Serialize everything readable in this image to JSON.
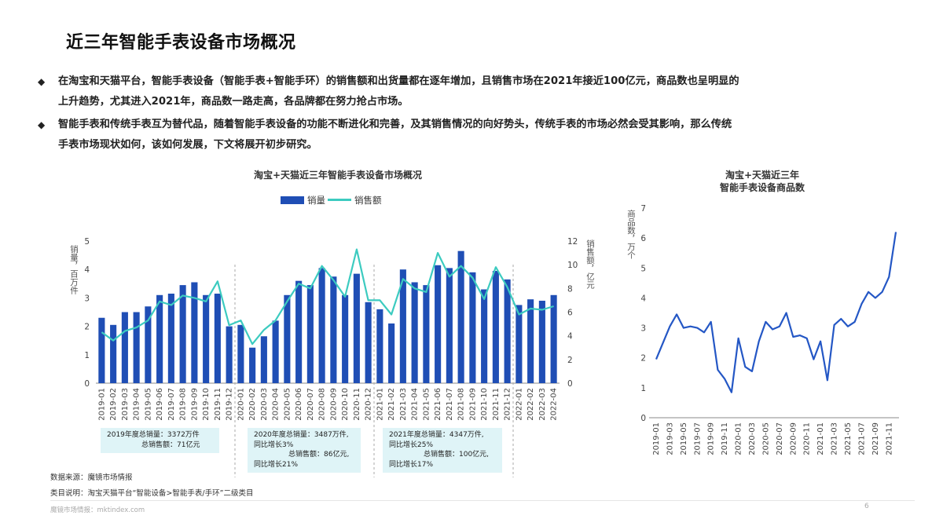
{
  "page": {
    "title": "近三年智能手表设备市场概况",
    "bullets": [
      {
        "marker": "◆",
        "lines": [
          "在淘宝和天猫平台，智能手表设备（智能手表+智能手环）的销售额和出货量都在逐年增加，且销售市场在2021年接近100亿元，商品数也呈明显的",
          "上升趋势，尤其进入2021年，商品数一路走高，各品牌都在努力抢占市场。"
        ]
      },
      {
        "marker": "◆",
        "lines": [
          "智能手表和传统手表互为替代品，随着智能手表设备的功能不断进化和完善，及其销售情况的向好势头，传统手表的市场必然会受其影响，那么传统",
          "手表市场现状如何，该如何发展，下文将展开初步研究。"
        ]
      }
    ],
    "summaries": [
      {
        "id": "2019",
        "lines": [
          "2019年度总销量：3372万件",
          "总销售额：71亿元"
        ]
      },
      {
        "id": "2020",
        "lines": [
          "2020年度总销量：3487万件,",
          "同比增长3%",
          "总销售额：86亿元,",
          "同比增长21%"
        ]
      },
      {
        "id": "2021",
        "lines": [
          "2021年度总销量：4347万件,",
          "同比增长25%",
          "总销售额：100亿元,",
          "同比增长17%"
        ]
      }
    ],
    "source_note": "数据来源：魔镜市场情报",
    "category_note": "类目说明：淘宝天猫平台“智能设备>智能手表/手环”二级类目",
    "footer": "魔镜市场情报：mktindex.com",
    "page_number": "6"
  },
  "colors": {
    "bars": "#1f4eb5",
    "sales_line": "#3ccbc0",
    "items_line": "#2457c5",
    "summary_bg": "#dff4f7",
    "divider": "#aaaaaa"
  },
  "chart_data": [
    {
      "type": "bar",
      "title": "淘宝+天猫近三年智能手表设备市场概况",
      "legend": [
        "销量",
        "销售额"
      ],
      "legend_position": "top",
      "ylabel_left": "销量，百万件",
      "ylabel_right": "销售额，亿元",
      "ylim_left": [
        0,
        5
      ],
      "ylim_right": [
        0,
        12
      ],
      "yticks_left": [
        "0",
        "1",
        "2",
        "3",
        "4",
        "5"
      ],
      "yticks_right": [
        "0",
        "2",
        "4",
        "6",
        "8",
        "10",
        "12"
      ],
      "categories": [
        "2019-01",
        "2019-02",
        "2019-03",
        "2019-04",
        "2019-05",
        "2019-06",
        "2019-07",
        "2019-08",
        "2019-09",
        "2019-10",
        "2019-11",
        "2019-12",
        "2020-01",
        "2020-02",
        "2020-03",
        "2020-04",
        "2020-05",
        "2020-06",
        "2020-07",
        "2020-08",
        "2020-09",
        "2020-10",
        "2020-11",
        "2020-12",
        "2021-01",
        "2021-02",
        "2021-03",
        "2021-04",
        "2021-05",
        "2021-06",
        "2021-07",
        "2021-08",
        "2021-09",
        "2021-10",
        "2021-11",
        "2021-12",
        "2022-01",
        "2022-02",
        "2022-03",
        "2022-04"
      ],
      "series": [
        {
          "name": "销量",
          "axis": "left",
          "kind": "bar",
          "values": [
            2.3,
            2.05,
            2.5,
            2.5,
            2.7,
            3.1,
            3.15,
            3.45,
            3.55,
            3.1,
            3.15,
            2.0,
            2.05,
            1.25,
            1.65,
            2.2,
            3.1,
            3.6,
            3.45,
            4.05,
            3.75,
            3.1,
            3.85,
            2.85,
            2.6,
            2.1,
            4.0,
            3.55,
            3.45,
            4.15,
            4.05,
            4.65,
            3.9,
            3.3,
            3.95,
            3.65,
            2.75,
            2.95,
            2.9,
            3.1
          ]
        },
        {
          "name": "销售额",
          "axis": "right",
          "kind": "line",
          "values": [
            4.3,
            3.6,
            4.4,
            4.7,
            5.3,
            6.9,
            6.6,
            7.4,
            7.2,
            6.9,
            8.6,
            4.9,
            5.3,
            3.3,
            4.5,
            5.3,
            6.9,
            8.4,
            8.0,
            9.9,
            8.7,
            7.3,
            11.3,
            7.0,
            7.0,
            5.8,
            8.8,
            8.0,
            7.7,
            11.0,
            9.0,
            9.9,
            8.9,
            7.1,
            9.8,
            8.1,
            5.8,
            6.3,
            6.2,
            6.5
          ]
        }
      ],
      "year_dividers_after": [
        "2019-12",
        "2020-12",
        "2021-12"
      ],
      "grid": false
    },
    {
      "type": "line",
      "title": "淘宝+天猫近三年\n智能手表设备商品数",
      "ylabel": "商品数，万个",
      "ylim": [
        0,
        7
      ],
      "yticks": [
        "0",
        "1",
        "2",
        "3",
        "4",
        "5",
        "6",
        "7"
      ],
      "x": [
        "2019-01",
        "2019-02",
        "2019-03",
        "2019-04",
        "2019-05",
        "2019-06",
        "2019-07",
        "2019-08",
        "2019-09",
        "2019-10",
        "2019-11",
        "2019-12",
        "2020-01",
        "2020-02",
        "2020-03",
        "2020-04",
        "2020-05",
        "2020-06",
        "2020-07",
        "2020-08",
        "2020-09",
        "2020-10",
        "2020-11",
        "2020-12",
        "2021-01",
        "2021-02",
        "2021-03",
        "2021-04",
        "2021-05",
        "2021-06",
        "2021-07",
        "2021-08",
        "2021-09",
        "2021-10",
        "2021-11",
        "2021-12"
      ],
      "xticks_shown": [
        "2019-01",
        "2019-03",
        "2019-05",
        "2019-07",
        "2019-09",
        "2019-11",
        "2020-01",
        "2020-03",
        "2020-05",
        "2020-07",
        "2020-09",
        "2020-11",
        "2021-01",
        "2021-03",
        "2021-05",
        "2021-07",
        "2021-09",
        "2021-11"
      ],
      "series": [
        {
          "name": "商品数",
          "values": [
            1.95,
            2.5,
            3.05,
            3.45,
            3.0,
            3.05,
            3.0,
            2.85,
            3.2,
            1.6,
            1.3,
            0.85,
            2.65,
            1.7,
            1.55,
            2.55,
            3.2,
            2.95,
            3.05,
            3.5,
            2.7,
            2.75,
            2.65,
            1.95,
            2.55,
            1.25,
            3.1,
            3.3,
            3.05,
            3.2,
            3.8,
            4.2,
            4.0,
            4.2,
            4.7,
            6.2
          ]
        }
      ],
      "grid": false
    }
  ]
}
